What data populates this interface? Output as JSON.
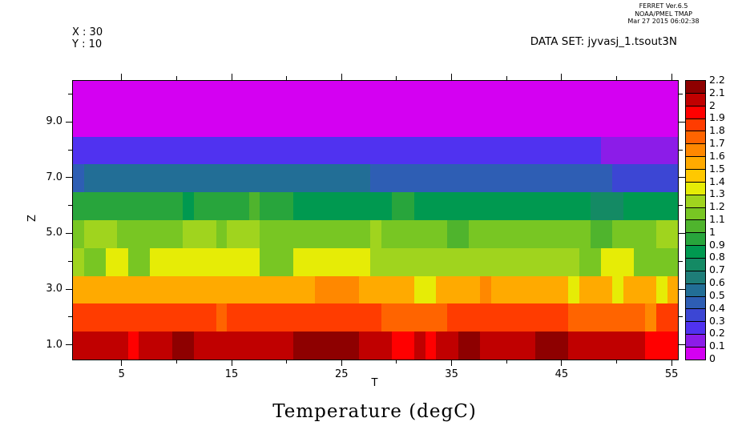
{
  "header": {
    "line1": "FERRET Ver.6.5",
    "line2": "NOAA/PMEL TMAP",
    "line3": "Mar 27 2015 06:02:38"
  },
  "info": {
    "x_line": "X : 30",
    "y_line": "Y : 10",
    "dataset": "DATA SET: jyvasj_1.tsout3N"
  },
  "chart_data": {
    "type": "heatmap",
    "title": "Temperature (degC)",
    "xlabel": "T",
    "ylabel": "Z",
    "x_range": [
      0.5,
      55.5
    ],
    "y_range": [
      0.5,
      10.5
    ],
    "grid": false,
    "legend_position": "right-colorbar",
    "x_major_ticks": [
      5,
      15,
      25,
      35,
      45,
      55
    ],
    "x_minor_ticks": [
      10,
      20,
      30,
      40,
      50
    ],
    "y_major_ticks": [
      1,
      3,
      5,
      7,
      9
    ],
    "y_major_tick_labels": [
      "1.0",
      "3.0",
      "5.0",
      "7.0",
      "9.0"
    ],
    "y_minor_ticks": [
      2,
      4,
      6,
      8,
      10
    ],
    "palette": [
      "#d400f2",
      "#8c1ce8",
      "#5032f0",
      "#3c46d4",
      "#2e5eb4",
      "#226e96",
      "#1e7d78",
      "#148a64",
      "#009950",
      "#28a53c",
      "#4fb42d",
      "#78c623",
      "#a0d41e",
      "#e6ec06",
      "#ffc800",
      "#ffaa00",
      "#ff8800",
      "#ff6400",
      "#ff3c00",
      "#ff0000",
      "#c00000",
      "#8e0000"
    ],
    "colorbar": {
      "min": 0,
      "max": 2.2,
      "step": 0.1,
      "labels_top_to_bottom": [
        "2.2",
        "2.1",
        "2",
        "1.9",
        "1.8",
        "1.7",
        "1.6",
        "1.5",
        "1.4",
        "1.3",
        "1.2",
        "1.1",
        "1",
        "0.9",
        "0.8",
        "0.7",
        "0.6",
        "0.5",
        "0.4",
        "0.3",
        "0.2",
        "0.1",
        "0"
      ]
    },
    "t_values_range": [
      1,
      55
    ],
    "z_levels": [
      1,
      2,
      3,
      4,
      5,
      6,
      7,
      8,
      9,
      10
    ],
    "rows": [
      {
        "z": 1,
        "values": [
          2.05,
          2.05,
          2.05,
          2.05,
          2.05,
          1.95,
          2.05,
          2.05,
          2.05,
          2.15,
          2.15,
          2.05,
          2.05,
          2.05,
          2.05,
          2.05,
          2.05,
          2.05,
          2.05,
          2.05,
          2.15,
          2.15,
          2.15,
          2.15,
          2.15,
          2.15,
          2.05,
          2.05,
          2.05,
          1.95,
          1.95,
          2.05,
          1.95,
          2.05,
          2.05,
          2.15,
          2.15,
          2.05,
          2.05,
          2.05,
          2.05,
          2.05,
          2.15,
          2.15,
          2.15,
          2.05,
          2.05,
          2.05,
          2.05,
          2.05,
          2.05,
          2.05,
          1.95,
          1.95,
          1.95
        ]
      },
      {
        "z": 2,
        "values": [
          1.85,
          1.85,
          1.85,
          1.85,
          1.85,
          1.85,
          1.85,
          1.85,
          1.85,
          1.85,
          1.85,
          1.85,
          1.85,
          1.75,
          1.85,
          1.85,
          1.85,
          1.85,
          1.85,
          1.85,
          1.85,
          1.85,
          1.85,
          1.85,
          1.85,
          1.85,
          1.85,
          1.85,
          1.75,
          1.75,
          1.75,
          1.75,
          1.75,
          1.75,
          1.85,
          1.85,
          1.85,
          1.85,
          1.85,
          1.85,
          1.85,
          1.85,
          1.85,
          1.85,
          1.85,
          1.75,
          1.75,
          1.75,
          1.75,
          1.75,
          1.75,
          1.75,
          1.65,
          1.85,
          1.85
        ]
      },
      {
        "z": 3,
        "values": [
          1.55,
          1.55,
          1.55,
          1.55,
          1.55,
          1.55,
          1.55,
          1.55,
          1.55,
          1.55,
          1.55,
          1.55,
          1.55,
          1.55,
          1.55,
          1.55,
          1.55,
          1.55,
          1.55,
          1.55,
          1.55,
          1.55,
          1.65,
          1.65,
          1.65,
          1.65,
          1.55,
          1.55,
          1.55,
          1.55,
          1.55,
          1.35,
          1.35,
          1.55,
          1.55,
          1.55,
          1.55,
          1.65,
          1.55,
          1.55,
          1.55,
          1.55,
          1.55,
          1.55,
          1.55,
          1.35,
          1.55,
          1.55,
          1.55,
          1.35,
          1.55,
          1.55,
          1.55,
          1.35,
          1.55
        ]
      },
      {
        "z": 4,
        "values": [
          1.25,
          1.15,
          1.15,
          1.35,
          1.35,
          1.15,
          1.15,
          1.35,
          1.35,
          1.35,
          1.35,
          1.35,
          1.35,
          1.35,
          1.35,
          1.35,
          1.35,
          1.15,
          1.15,
          1.15,
          1.35,
          1.35,
          1.35,
          1.35,
          1.35,
          1.35,
          1.35,
          1.25,
          1.25,
          1.25,
          1.25,
          1.25,
          1.25,
          1.25,
          1.25,
          1.25,
          1.25,
          1.25,
          1.25,
          1.25,
          1.25,
          1.25,
          1.25,
          1.25,
          1.25,
          1.25,
          1.15,
          1.15,
          1.35,
          1.35,
          1.35,
          1.15,
          1.15,
          1.15,
          1.15
        ]
      },
      {
        "z": 5,
        "values": [
          1.15,
          1.25,
          1.25,
          1.25,
          1.15,
          1.15,
          1.15,
          1.15,
          1.15,
          1.15,
          1.25,
          1.25,
          1.25,
          1.15,
          1.25,
          1.25,
          1.25,
          1.15,
          1.15,
          1.15,
          1.15,
          1.15,
          1.15,
          1.15,
          1.15,
          1.15,
          1.15,
          1.25,
          1.15,
          1.15,
          1.15,
          1.15,
          1.15,
          1.15,
          1.05,
          1.05,
          1.15,
          1.15,
          1.15,
          1.15,
          1.15,
          1.15,
          1.15,
          1.15,
          1.15,
          1.15,
          1.15,
          1.05,
          1.05,
          1.15,
          1.15,
          1.15,
          1.15,
          1.25,
          1.25
        ]
      },
      {
        "z": 6,
        "values": [
          0.95,
          0.95,
          0.95,
          0.95,
          0.95,
          0.95,
          0.95,
          0.95,
          0.95,
          0.95,
          0.85,
          0.95,
          0.95,
          0.95,
          0.95,
          0.95,
          1.05,
          0.95,
          0.95,
          0.95,
          0.85,
          0.85,
          0.85,
          0.85,
          0.85,
          0.85,
          0.85,
          0.85,
          0.85,
          0.95,
          0.95,
          0.85,
          0.85,
          0.85,
          0.85,
          0.85,
          0.85,
          0.85,
          0.85,
          0.85,
          0.85,
          0.85,
          0.85,
          0.85,
          0.85,
          0.85,
          0.85,
          0.75,
          0.75,
          0.75,
          0.85,
          0.85,
          0.85,
          0.85,
          0.85
        ]
      },
      {
        "z": 7,
        "values": [
          0.45,
          0.55,
          0.55,
          0.55,
          0.55,
          0.55,
          0.55,
          0.55,
          0.55,
          0.55,
          0.55,
          0.55,
          0.55,
          0.55,
          0.55,
          0.55,
          0.55,
          0.55,
          0.55,
          0.55,
          0.55,
          0.55,
          0.55,
          0.55,
          0.55,
          0.55,
          0.55,
          0.45,
          0.45,
          0.45,
          0.45,
          0.45,
          0.45,
          0.45,
          0.45,
          0.45,
          0.45,
          0.45,
          0.45,
          0.45,
          0.45,
          0.45,
          0.45,
          0.45,
          0.45,
          0.45,
          0.45,
          0.45,
          0.45,
          0.35,
          0.35,
          0.35,
          0.35,
          0.35,
          0.35
        ]
      },
      {
        "z": 8,
        "values": [
          0.25,
          0.25,
          0.25,
          0.25,
          0.25,
          0.25,
          0.25,
          0.25,
          0.25,
          0.25,
          0.25,
          0.25,
          0.25,
          0.25,
          0.25,
          0.25,
          0.25,
          0.25,
          0.25,
          0.25,
          0.25,
          0.25,
          0.25,
          0.25,
          0.25,
          0.25,
          0.25,
          0.25,
          0.25,
          0.25,
          0.25,
          0.25,
          0.25,
          0.25,
          0.25,
          0.25,
          0.25,
          0.25,
          0.25,
          0.25,
          0.25,
          0.25,
          0.25,
          0.25,
          0.25,
          0.25,
          0.25,
          0.25,
          0.15,
          0.15,
          0.15,
          0.15,
          0.15,
          0.15,
          0.15
        ]
      },
      {
        "z": 9,
        "values": [
          0.05,
          0.05,
          0.05,
          0.05,
          0.05,
          0.05,
          0.05,
          0.05,
          0.05,
          0.05,
          0.05,
          0.05,
          0.05,
          0.05,
          0.05,
          0.05,
          0.05,
          0.05,
          0.05,
          0.05,
          0.05,
          0.05,
          0.05,
          0.05,
          0.05,
          0.05,
          0.05,
          0.05,
          0.05,
          0.05,
          0.05,
          0.05,
          0.05,
          0.05,
          0.05,
          0.05,
          0.05,
          0.05,
          0.05,
          0.05,
          0.05,
          0.05,
          0.05,
          0.05,
          0.05,
          0.05,
          0.05,
          0.05,
          0.05,
          0.05,
          0.05,
          0.05,
          0.05,
          0.05,
          0.05
        ]
      },
      {
        "z": 10,
        "values": [
          0.05,
          0.05,
          0.05,
          0.05,
          0.05,
          0.05,
          0.05,
          0.05,
          0.05,
          0.05,
          0.05,
          0.05,
          0.05,
          0.05,
          0.05,
          0.05,
          0.05,
          0.05,
          0.05,
          0.05,
          0.05,
          0.05,
          0.05,
          0.05,
          0.05,
          0.05,
          0.05,
          0.05,
          0.05,
          0.05,
          0.05,
          0.05,
          0.05,
          0.05,
          0.05,
          0.05,
          0.05,
          0.05,
          0.05,
          0.05,
          0.05,
          0.05,
          0.05,
          0.05,
          0.05,
          0.05,
          0.05,
          0.05,
          0.05,
          0.05,
          0.05,
          0.05,
          0.05,
          0.05,
          0.05
        ]
      }
    ]
  }
}
